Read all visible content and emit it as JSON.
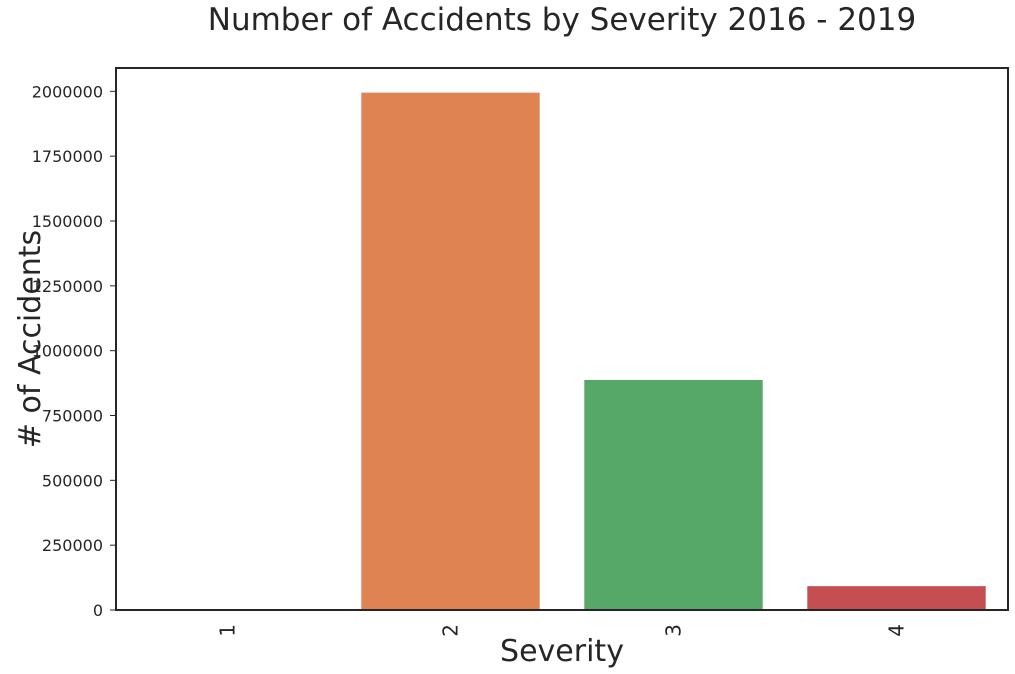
{
  "chart_data": {
    "type": "bar",
    "title": "Number of Accidents by Severity 2016 - 2019",
    "xlabel": "Severity",
    "ylabel": "# of Accidents",
    "categories": [
      "1",
      "2",
      "3",
      "4"
    ],
    "values": [
      800,
      1995000,
      887000,
      92000
    ],
    "colors": [
      "#4C72B0",
      "#DD8452",
      "#55A868",
      "#C44E52"
    ],
    "ylim": [
      0,
      2090000
    ],
    "yticks": [
      0,
      250000,
      500000,
      750000,
      1000000,
      1250000,
      1500000,
      1750000,
      2000000
    ],
    "ytick_labels": [
      "0",
      "250000",
      "500000",
      "750000",
      "1000000",
      "1250000",
      "1500000",
      "1750000",
      "2000000"
    ],
    "grid": false,
    "legend": "none"
  }
}
